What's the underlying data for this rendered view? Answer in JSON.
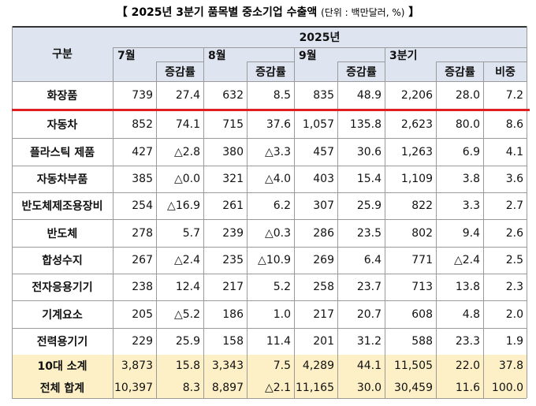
{
  "header": {
    "brackets": [
      "【",
      "】"
    ],
    "title": "2025년 3분기 품목별 중소기업 수출액",
    "unit": "(단위 : 백만달러, %)"
  },
  "table": {
    "corner": "구분",
    "year": "2025년",
    "groups": [
      {
        "label": "7월",
        "change": "증감률"
      },
      {
        "label": "8월",
        "change": "증감률"
      },
      {
        "label": "9월",
        "change": "증감률"
      },
      {
        "label": "3분기",
        "change": "증감률"
      }
    ],
    "share": "비중",
    "rows": [
      {
        "label": "화장품",
        "cells": [
          "739",
          "27.4",
          "632",
          "8.5",
          "835",
          "48.9",
          "2,206",
          "28.0",
          "7.2"
        ]
      },
      {
        "label": "자동차",
        "cells": [
          "852",
          "74.1",
          "715",
          "37.6",
          "1,057",
          "135.8",
          "2,623",
          "80.0",
          "8.6"
        ]
      },
      {
        "label": "플라스틱 제품",
        "cells": [
          "427",
          "△2.8",
          "380",
          "△3.3",
          "457",
          "30.6",
          "1,263",
          "6.9",
          "4.1"
        ]
      },
      {
        "label": "자동차부품",
        "cells": [
          "385",
          "△0.0",
          "321",
          "△4.0",
          "403",
          "15.4",
          "1,109",
          "3.8",
          "3.6"
        ]
      },
      {
        "label": "반도체제조용장비",
        "cells": [
          "254",
          "△16.9",
          "261",
          "6.2",
          "307",
          "25.9",
          "822",
          "3.3",
          "2.7"
        ]
      },
      {
        "label": "반도체",
        "cells": [
          "278",
          "5.7",
          "239",
          "△0.3",
          "286",
          "23.5",
          "802",
          "9.4",
          "2.6"
        ]
      },
      {
        "label": "합성수지",
        "cells": [
          "267",
          "△2.4",
          "235",
          "△10.9",
          "269",
          "6.4",
          "771",
          "△2.4",
          "2.5"
        ]
      },
      {
        "label": "전자응용기기",
        "cells": [
          "238",
          "12.4",
          "217",
          "5.2",
          "258",
          "23.7",
          "713",
          "13.8",
          "2.3"
        ]
      },
      {
        "label": "기계요소",
        "cells": [
          "205",
          "△5.2",
          "186",
          "1.0",
          "217",
          "20.7",
          "608",
          "4.8",
          "2.0"
        ]
      },
      {
        "label": "전력용기기",
        "cells": [
          "229",
          "25.9",
          "158",
          "11.4",
          "201",
          "31.2",
          "588",
          "23.3",
          "1.9"
        ]
      },
      {
        "label": "10대 소계",
        "cells": [
          "3,873",
          "15.8",
          "3,343",
          "7.5",
          "4,289",
          "44.1",
          "11,505",
          "22.0",
          "37.8"
        ]
      },
      {
        "label": "전체 합계",
        "cells": [
          "10,397",
          "8.3",
          "8,897",
          "△2.1",
          "11,165",
          "30.0",
          "30,459",
          "11.6",
          "100.0"
        ]
      }
    ]
  }
}
